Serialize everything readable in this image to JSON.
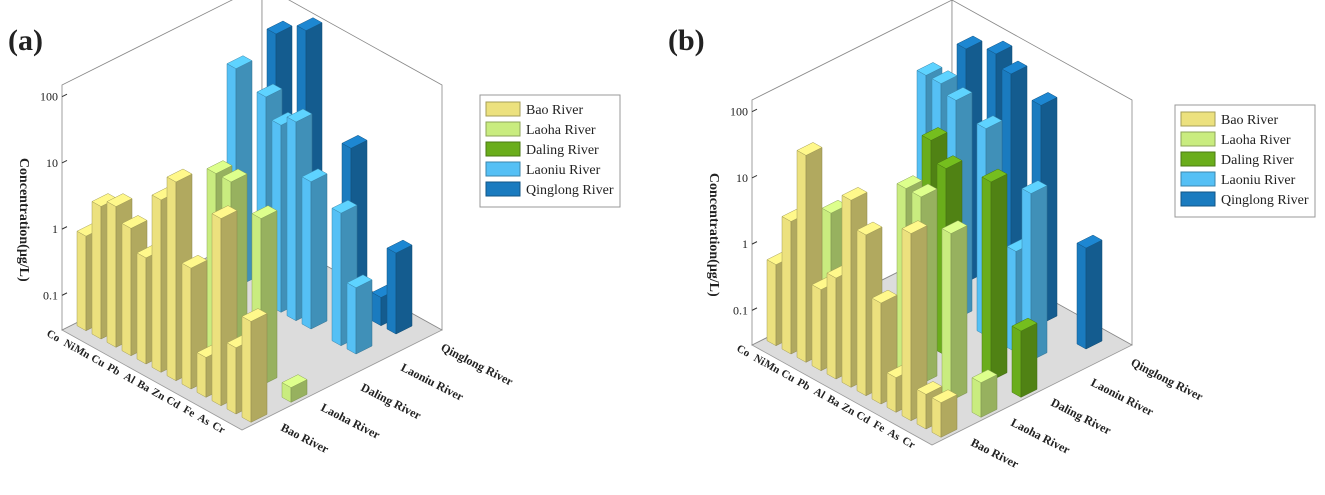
{
  "chart_data": [
    {
      "type": "bar3d",
      "label": "(a)",
      "zlabel": "Concentration(μg/L)",
      "log": true,
      "zlim": [
        0.03,
        150
      ],
      "zticks": [
        0.1,
        1,
        10,
        100
      ],
      "categories": [
        "Co",
        "Ni",
        "Mn",
        "Cu",
        "Pb",
        "Al",
        "Ba",
        "Zn",
        "Cd",
        "Fe",
        "As",
        "Cr"
      ],
      "series": [
        {
          "name": "Bao River",
          "color": "#ece17e",
          "values": [
            0.8,
            3,
            4,
            2.5,
            1.2,
            12,
            30,
            2,
            0.12,
            20,
            0.3,
            1
          ]
        },
        {
          "name": "Laoha River",
          "color": "#c9ec7f",
          "values": [
            null,
            null,
            null,
            3,
            null,
            null,
            20,
            20,
            null,
            10,
            null,
            0.05
          ]
        },
        {
          "name": "Daling River",
          "color": "#6aad1b",
          "values": [
            null,
            null,
            null,
            null,
            null,
            null,
            null,
            null,
            null,
            null,
            null,
            null
          ]
        },
        {
          "name": "Laoniu River",
          "color": "#55c0f5",
          "values": [
            null,
            null,
            60,
            null,
            40,
            20,
            30,
            5,
            null,
            3,
            0.3,
            null
          ]
        },
        {
          "name": "Qinglong River",
          "color": "#1a7bbf",
          "values": [
            null,
            null,
            100,
            null,
            200,
            null,
            null,
            8,
            null,
            0.08,
            0.5,
            null
          ]
        }
      ]
    },
    {
      "type": "bar3d",
      "label": "(b)",
      "zlabel": "Concentration(μg/L)",
      "log": true,
      "zlim": [
        0.03,
        150
      ],
      "zticks": [
        0.1,
        1,
        10,
        100
      ],
      "categories": [
        "Co",
        "Ni",
        "Mn",
        "Cu",
        "Pb",
        "Al",
        "Ba",
        "Zn",
        "Cd",
        "Fe",
        "As",
        "Cr"
      ],
      "series": [
        {
          "name": "Bao River",
          "color": "#ece17e",
          "values": [
            0.5,
            3,
            40,
            0.5,
            1,
            20,
            8,
            1,
            0.1,
            20,
            0.1,
            0.1
          ]
        },
        {
          "name": "Laoha River",
          "color": "#c9ec7f",
          "values": [
            null,
            2,
            null,
            null,
            null,
            null,
            20,
            20,
            null,
            10,
            null,
            0.1
          ]
        },
        {
          "name": "Daling River",
          "color": "#6aad1b",
          "values": [
            null,
            null,
            null,
            null,
            null,
            40,
            20,
            null,
            null,
            30,
            null,
            0.3
          ]
        },
        {
          "name": "Laoniu River",
          "color": "#55c0f5",
          "values": [
            null,
            null,
            80,
            80,
            60,
            null,
            40,
            null,
            1,
            10,
            null,
            null
          ]
        },
        {
          "name": "Qinglong River",
          "color": "#1a7bbf",
          "values": [
            null,
            null,
            100,
            null,
            150,
            100,
            null,
            60,
            null,
            null,
            1,
            null
          ]
        }
      ]
    }
  ]
}
